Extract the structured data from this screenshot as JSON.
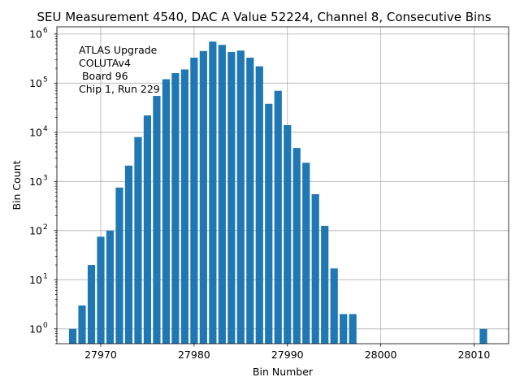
{
  "chart_data": {
    "type": "bar",
    "title": "SEU Measurement 4540, DAC A Value 52224, Channel 8, Consecutive Bins",
    "xlabel": "Bin Number",
    "ylabel": "Bin Count",
    "yscale": "log",
    "xlim": [
      27965.3,
      28013.7
    ],
    "ylim": [
      0.5,
      1400000
    ],
    "grid": true,
    "bar_color": "#1f77b4",
    "x_ticks": [
      27970,
      27980,
      27990,
      28000,
      28010
    ],
    "y_ticks": [
      {
        "value": 1,
        "base": "10",
        "exp": "0"
      },
      {
        "value": 10,
        "base": "10",
        "exp": "1"
      },
      {
        "value": 100,
        "base": "10",
        "exp": "2"
      },
      {
        "value": 1000,
        "base": "10",
        "exp": "3"
      },
      {
        "value": 10000,
        "base": "10",
        "exp": "4"
      },
      {
        "value": 100000,
        "base": "10",
        "exp": "5"
      },
      {
        "value": 1000000,
        "base": "10",
        "exp": "6"
      }
    ],
    "annotation": [
      "ATLAS Upgrade",
      "COLUTAv4",
      " Board 96",
      "Chip 1, Run 229"
    ],
    "x": [
      27967,
      27968,
      27969,
      27970,
      27971,
      27972,
      27973,
      27974,
      27975,
      27976,
      27977,
      27978,
      27979,
      27980,
      27981,
      27982,
      27983,
      27984,
      27985,
      27986,
      27987,
      27988,
      27989,
      27990,
      27991,
      27992,
      27993,
      27994,
      27995,
      27996,
      27997,
      28011
    ],
    "values": [
      1,
      3,
      20,
      75,
      100,
      750,
      2100,
      8000,
      22000,
      55000,
      120000,
      160000,
      190000,
      330000,
      450000,
      700000,
      600000,
      430000,
      460000,
      330000,
      220000,
      38000,
      70000,
      14000,
      4800,
      2400,
      550,
      125,
      17,
      2,
      2,
      1
    ]
  }
}
